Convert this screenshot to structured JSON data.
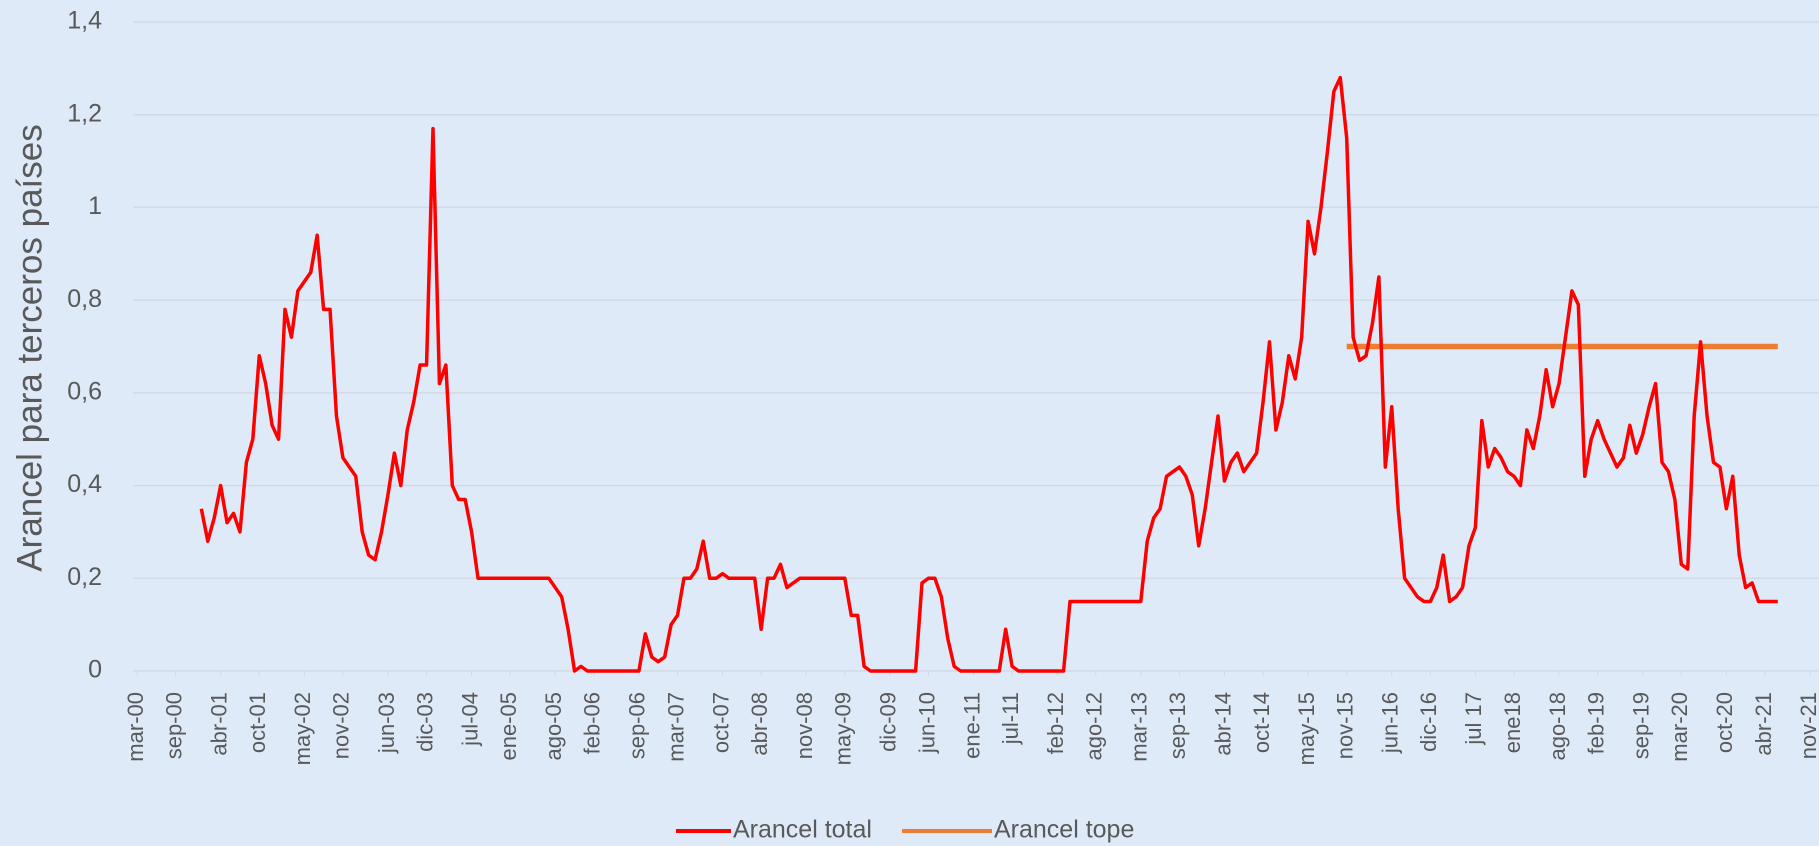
{
  "chart_data": {
    "type": "line",
    "y_label": "Arancel para terceros países",
    "x": [
      "2001-01",
      "2001-02",
      "2001-03",
      "2001-04",
      "2001-05",
      "2001-06",
      "2001-07",
      "2001-08",
      "2001-09",
      "2001-10",
      "2001-11",
      "2001-12",
      "2002-01",
      "2002-02",
      "2002-03",
      "2002-04",
      "2002-05",
      "2002-06",
      "2002-07",
      "2002-08",
      "2002-09",
      "2002-10",
      "2002-11",
      "2002-12",
      "2003-01",
      "2003-02",
      "2003-03",
      "2003-04",
      "2003-05",
      "2003-06",
      "2003-07",
      "2003-08",
      "2003-09",
      "2003-10",
      "2003-11",
      "2003-12",
      "2004-01",
      "2004-02",
      "2004-03",
      "2004-04",
      "2004-05",
      "2004-06",
      "2004-07",
      "2004-08",
      "2004-09",
      "2004-10",
      "2004-11",
      "2004-12",
      "2005-01",
      "2005-02",
      "2005-03",
      "2005-04",
      "2005-05",
      "2005-06",
      "2005-07",
      "2005-08",
      "2005-09",
      "2005-10",
      "2005-11",
      "2005-12",
      "2006-01",
      "2006-02",
      "2006-03",
      "2006-04",
      "2006-05",
      "2006-06",
      "2006-07",
      "2006-08",
      "2006-09",
      "2006-10",
      "2006-11",
      "2006-12",
      "2007-01",
      "2007-02",
      "2007-03",
      "2007-04",
      "2007-05",
      "2007-06",
      "2007-07",
      "2007-08",
      "2007-09",
      "2007-10",
      "2007-11",
      "2007-12",
      "2008-01",
      "2008-02",
      "2008-03",
      "2008-04",
      "2008-05",
      "2008-06",
      "2008-07",
      "2008-08",
      "2008-09",
      "2008-10",
      "2008-11",
      "2008-12",
      "2009-01",
      "2009-02",
      "2009-03",
      "2009-04",
      "2009-05",
      "2009-06",
      "2009-07",
      "2009-08",
      "2009-09",
      "2009-10",
      "2009-11",
      "2009-12",
      "2010-01",
      "2010-02",
      "2010-03",
      "2010-04",
      "2010-05",
      "2010-06",
      "2010-07",
      "2010-08",
      "2010-09",
      "2010-10",
      "2010-11",
      "2010-12",
      "2011-01",
      "2011-02",
      "2011-03",
      "2011-04",
      "2011-05",
      "2011-06",
      "2011-07",
      "2011-08",
      "2011-09",
      "2011-10",
      "2011-11",
      "2011-12",
      "2012-01",
      "2012-02",
      "2012-03",
      "2012-04",
      "2012-05",
      "2012-06",
      "2012-07",
      "2012-08",
      "2012-09",
      "2012-10",
      "2012-11",
      "2012-12",
      "2013-01",
      "2013-02",
      "2013-03",
      "2013-04",
      "2013-05",
      "2013-06",
      "2013-07",
      "2013-08",
      "2013-09",
      "2013-10",
      "2013-11",
      "2013-12",
      "2014-01",
      "2014-02",
      "2014-03",
      "2014-04",
      "2014-05",
      "2014-06",
      "2014-07",
      "2014-08",
      "2014-09",
      "2014-10",
      "2014-11",
      "2014-12",
      "2015-01",
      "2015-02",
      "2015-03",
      "2015-04",
      "2015-05",
      "2015-06",
      "2015-07",
      "2015-08",
      "2015-09",
      "2015-10",
      "2015-11",
      "2015-12",
      "2016-01",
      "2016-02",
      "2016-03",
      "2016-04",
      "2016-05",
      "2016-06",
      "2016-07",
      "2016-08",
      "2016-09",
      "2016-10",
      "2016-11",
      "2016-12",
      "2017-01",
      "2017-02",
      "2017-03",
      "2017-04",
      "2017-05",
      "2017-06",
      "2017-07",
      "2017-08",
      "2017-09",
      "2017-10",
      "2017-11",
      "2017-12",
      "2018-01",
      "2018-02",
      "2018-03",
      "2018-04",
      "2018-05",
      "2018-06",
      "2018-07",
      "2018-08",
      "2018-09",
      "2018-10",
      "2018-11",
      "2018-12",
      "2019-01",
      "2019-02",
      "2019-03",
      "2019-04",
      "2019-05",
      "2019-06",
      "2019-07",
      "2019-08",
      "2019-09",
      "2019-10",
      "2019-11",
      "2019-12",
      "2020-01",
      "2020-02",
      "2020-03",
      "2020-04",
      "2020-05",
      "2020-06",
      "2020-07",
      "2020-08",
      "2020-09",
      "2020-10",
      "2020-11",
      "2020-12",
      "2021-01",
      "2021-02",
      "2021-03",
      "2021-04",
      "2021-05",
      "2021-06"
    ],
    "series": [
      {
        "name": "Arancel total",
        "color": "#ff0000",
        "values": [
          0.35,
          0.28,
          0.33,
          0.4,
          0.32,
          0.34,
          0.3,
          0.45,
          0.5,
          0.68,
          0.62,
          0.53,
          0.5,
          0.78,
          0.72,
          0.82,
          0.84,
          0.86,
          0.94,
          0.78,
          0.78,
          0.55,
          0.46,
          0.44,
          0.42,
          0.3,
          0.25,
          0.24,
          0.3,
          0.38,
          0.47,
          0.4,
          0.52,
          0.58,
          0.66,
          0.66,
          1.17,
          0.62,
          0.66,
          0.4,
          0.37,
          0.37,
          0.3,
          0.2,
          0.2,
          0.2,
          0.2,
          0.2,
          0.2,
          0.2,
          0.2,
          0.2,
          0.2,
          0.2,
          0.2,
          0.18,
          0.16,
          0.09,
          0,
          0.01,
          0,
          0,
          0,
          0,
          0,
          0,
          0,
          0,
          0,
          0.08,
          0.03,
          0.02,
          0.03,
          0.1,
          0.12,
          0.2,
          0.2,
          0.22,
          0.28,
          0.2,
          0.2,
          0.21,
          0.2,
          0.2,
          0.2,
          0.2,
          0.2,
          0.09,
          0.2,
          0.2,
          0.23,
          0.18,
          0.19,
          0.2,
          0.2,
          0.2,
          0.2,
          0.2,
          0.2,
          0.2,
          0.2,
          0.12,
          0.12,
          0.01,
          0,
          0,
          0,
          0,
          0,
          0,
          0,
          0,
          0.19,
          0.2,
          0.2,
          0.16,
          0.07,
          0.01,
          0,
          0,
          0,
          0,
          0,
          0,
          0,
          0.09,
          0.01,
          0,
          0,
          0,
          0,
          0,
          0,
          0,
          0,
          0.15,
          0.15,
          0.15,
          0.15,
          0.15,
          0.15,
          0.15,
          0.15,
          0.15,
          0.15,
          0.15,
          0.15,
          0.28,
          0.33,
          0.35,
          0.42,
          0.43,
          0.44,
          0.42,
          0.38,
          0.27,
          0.35,
          0.45,
          0.55,
          0.41,
          0.45,
          0.47,
          0.43,
          0.45,
          0.47,
          0.58,
          0.71,
          0.52,
          0.58,
          0.68,
          0.63,
          0.72,
          0.97,
          0.9,
          1.0,
          1.12,
          1.25,
          1.28,
          1.15,
          0.72,
          0.67,
          0.68,
          0.75,
          0.85,
          0.44,
          0.57,
          0.35,
          0.2,
          0.18,
          0.16,
          0.15,
          0.15,
          0.18,
          0.25,
          0.15,
          0.16,
          0.18,
          0.27,
          0.31,
          0.54,
          0.44,
          0.48,
          0.46,
          0.43,
          0.42,
          0.4,
          0.52,
          0.48,
          0.55,
          0.65,
          0.57,
          0.62,
          0.72,
          0.82,
          0.79,
          0.42,
          0.5,
          0.54,
          0.5,
          0.47,
          0.44,
          0.46,
          0.53,
          0.47,
          0.51,
          0.57,
          0.62,
          0.45,
          0.43,
          0.37,
          0.23,
          0.22,
          0.55,
          0.71,
          0.55,
          0.45,
          0.44,
          0.35,
          0.42,
          0.25,
          0.18,
          0.19,
          0.15,
          0.15,
          0.15,
          0.15
        ]
      },
      {
        "name": "Arancel tope",
        "color": "#ed7d31",
        "values": [
          null,
          null,
          null,
          null,
          null,
          null,
          null,
          null,
          null,
          null,
          null,
          null,
          null,
          null,
          null,
          null,
          null,
          null,
          null,
          null,
          null,
          null,
          null,
          null,
          null,
          null,
          null,
          null,
          null,
          null,
          null,
          null,
          null,
          null,
          null,
          null,
          null,
          null,
          null,
          null,
          null,
          null,
          null,
          null,
          null,
          null,
          null,
          null,
          null,
          null,
          null,
          null,
          null,
          null,
          null,
          null,
          null,
          null,
          null,
          null,
          null,
          null,
          null,
          null,
          null,
          null,
          null,
          null,
          null,
          null,
          null,
          null,
          null,
          null,
          null,
          null,
          null,
          null,
          null,
          null,
          null,
          null,
          null,
          null,
          null,
          null,
          null,
          null,
          null,
          null,
          null,
          null,
          null,
          null,
          null,
          null,
          null,
          null,
          null,
          null,
          null,
          null,
          null,
          null,
          null,
          null,
          null,
          null,
          null,
          null,
          null,
          null,
          null,
          null,
          null,
          null,
          null,
          null,
          null,
          null,
          null,
          null,
          null,
          null,
          null,
          null,
          null,
          null,
          null,
          null,
          null,
          null,
          null,
          null,
          null,
          null,
          null,
          null,
          null,
          null,
          null,
          null,
          null,
          null,
          null,
          null,
          null,
          null,
          null,
          null,
          null,
          null,
          null,
          null,
          null,
          null,
          null,
          null,
          null,
          null,
          null,
          null,
          null,
          null,
          null,
          null,
          null,
          null,
          null,
          null,
          null,
          null,
          null,
          null,
          null,
          null,
          null,
          null,
          0.7,
          0.7,
          0.7,
          0.7,
          0.7,
          0.7,
          0.7,
          0.7,
          0.7,
          0.7,
          0.7,
          0.7,
          0.7,
          0.7,
          0.7,
          0.7,
          0.7,
          0.7,
          0.7,
          0.7,
          0.7,
          0.7,
          0.7,
          0.7,
          0.7,
          0.7,
          0.7,
          0.7,
          0.7,
          0.7,
          0.7,
          0.7,
          0.7,
          0.7,
          0.7,
          0.7,
          0.7,
          0.7,
          0.7,
          0.7,
          0.7,
          0.7,
          0.7,
          0.7,
          0.7,
          0.7,
          0.7,
          0.7,
          0.7,
          0.7,
          0.7,
          0.7,
          0.7,
          0.7,
          0.7,
          0.7,
          0.7,
          0.7,
          0.7,
          0.7,
          0.7,
          0.7,
          0.7,
          0.7,
          0.7,
          0.7,
          0.7,
          0.7
        ]
      }
    ],
    "xlim": [
      "2000-03",
      "2021-11"
    ],
    "xticks": [
      {
        "value": "2000-03",
        "label": "mar-00"
      },
      {
        "value": "2000-09",
        "label": "sep-00"
      },
      {
        "value": "2001-04",
        "label": "abr-01"
      },
      {
        "value": "2001-10",
        "label": "oct-01"
      },
      {
        "value": "2002-05",
        "label": "may-02"
      },
      {
        "value": "2002-11",
        "label": "nov-02"
      },
      {
        "value": "2003-06",
        "label": "jun-03"
      },
      {
        "value": "2003-12",
        "label": "dic-03"
      },
      {
        "value": "2004-07",
        "label": "jul-04"
      },
      {
        "value": "2005-01",
        "label": "ene-05"
      },
      {
        "value": "2005-08",
        "label": "ago-05"
      },
      {
        "value": "2006-02",
        "label": "feb-06"
      },
      {
        "value": "2006-09",
        "label": "sep-06"
      },
      {
        "value": "2007-03",
        "label": "mar-07"
      },
      {
        "value": "2007-10",
        "label": "oct-07"
      },
      {
        "value": "2008-04",
        "label": "abr-08"
      },
      {
        "value": "2008-11",
        "label": "nov-08"
      },
      {
        "value": "2009-05",
        "label": "may-09"
      },
      {
        "value": "2009-12",
        "label": "dic-09"
      },
      {
        "value": "2010-06",
        "label": "jun-10"
      },
      {
        "value": "2011-01",
        "label": "ene-11"
      },
      {
        "value": "2011-07",
        "label": "jul-11"
      },
      {
        "value": "2012-02",
        "label": "feb-12"
      },
      {
        "value": "2012-08",
        "label": "ago-12"
      },
      {
        "value": "2013-03",
        "label": "mar-13"
      },
      {
        "value": "2013-09",
        "label": "sep-13"
      },
      {
        "value": "2014-04",
        "label": "abr-14"
      },
      {
        "value": "2014-10",
        "label": "oct-14"
      },
      {
        "value": "2015-05",
        "label": "may-15"
      },
      {
        "value": "2015-11",
        "label": "nov-15"
      },
      {
        "value": "2016-06",
        "label": "jun-16"
      },
      {
        "value": "2016-12",
        "label": "dic-16"
      },
      {
        "value": "2017-07",
        "label": "jul 17"
      },
      {
        "value": "2018-01",
        "label": "ene18"
      },
      {
        "value": "2018-08",
        "label": "ago-18"
      },
      {
        "value": "2019-02",
        "label": "feb-19"
      },
      {
        "value": "2019-09",
        "label": "sep-19"
      },
      {
        "value": "2020-03",
        "label": "mar-20"
      },
      {
        "value": "2020-10",
        "label": "oct-20"
      },
      {
        "value": "2021-04",
        "label": "abr-21"
      },
      {
        "value": "2021-11",
        "label": "nov-21"
      }
    ],
    "ylim": [
      0,
      1.4
    ],
    "yticks": [
      0,
      {
        "value": 0.2,
        "label": "0,2"
      },
      {
        "value": 0.4,
        "label": "0,4"
      },
      {
        "value": 0.6,
        "label": "0,6"
      },
      {
        "value": 0.8,
        "label": "0,8"
      },
      1,
      {
        "value": 1.2,
        "label": "1,2"
      },
      {
        "value": 1.4,
        "label": "1,4"
      }
    ],
    "grid": true,
    "legend": "bottom"
  }
}
